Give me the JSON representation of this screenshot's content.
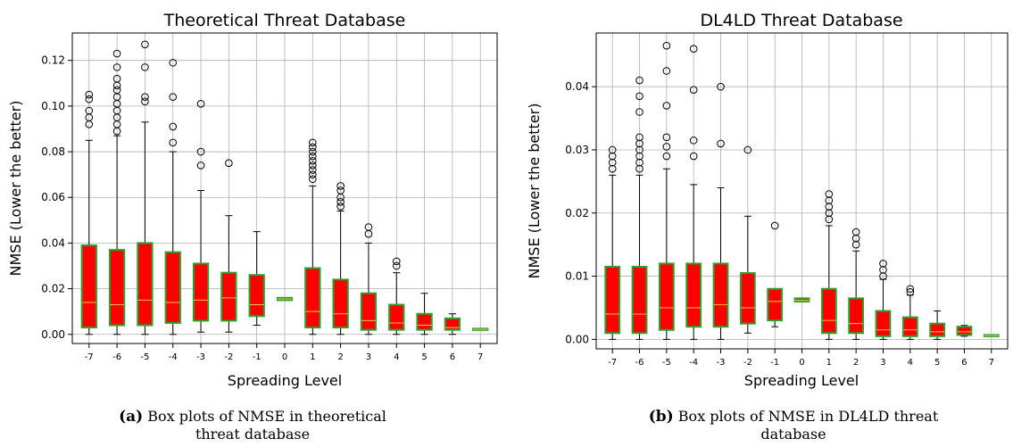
{
  "chart_data": [
    {
      "type": "box",
      "title": "Theoretical Threat Database",
      "xlabel": "Spreading Level",
      "ylabel": "NMSE (Lower the better)",
      "ylim": [
        -0.004,
        0.132
      ],
      "yticks": [
        0.0,
        0.02,
        0.04,
        0.06,
        0.08,
        0.1,
        0.12
      ],
      "ytick_labels": [
        "0.00",
        "0.02",
        "0.04",
        "0.06",
        "0.08",
        "0.10",
        "0.12"
      ],
      "grid": true,
      "box_fill": "#ff0000",
      "box_edge": "#2ca02c",
      "median_color": "#ffbf40",
      "boxes": [
        {
          "label": "-7",
          "whislo": 0.0,
          "q1": 0.003,
          "med": 0.014,
          "q3": 0.039,
          "whishi": 0.085,
          "fliers": [
            0.092,
            0.095,
            0.098,
            0.103,
            0.105
          ]
        },
        {
          "label": "-6",
          "whislo": 0.0,
          "q1": 0.004,
          "med": 0.013,
          "q3": 0.037,
          "whishi": 0.087,
          "fliers": [
            0.089,
            0.092,
            0.095,
            0.098,
            0.101,
            0.104,
            0.107,
            0.109,
            0.112,
            0.117,
            0.123
          ]
        },
        {
          "label": "-5",
          "whislo": 0.0,
          "q1": 0.004,
          "med": 0.015,
          "q3": 0.04,
          "whishi": 0.093,
          "fliers": [
            0.102,
            0.104,
            0.117,
            0.127
          ]
        },
        {
          "label": "-4",
          "whislo": 0.0,
          "q1": 0.005,
          "med": 0.014,
          "q3": 0.036,
          "whishi": 0.08,
          "fliers": [
            0.084,
            0.091,
            0.104,
            0.119
          ]
        },
        {
          "label": "-3",
          "whislo": 0.001,
          "q1": 0.006,
          "med": 0.015,
          "q3": 0.031,
          "whishi": 0.063,
          "fliers": [
            0.074,
            0.08,
            0.101
          ]
        },
        {
          "label": "-2",
          "whislo": 0.001,
          "q1": 0.006,
          "med": 0.016,
          "q3": 0.027,
          "whishi": 0.052,
          "fliers": [
            0.075
          ]
        },
        {
          "label": "-1",
          "whislo": 0.004,
          "q1": 0.008,
          "med": 0.013,
          "q3": 0.026,
          "whishi": 0.045,
          "fliers": []
        },
        {
          "label": "0",
          "whislo": 0.015,
          "q1": 0.015,
          "med": 0.0155,
          "q3": 0.016,
          "whishi": 0.016,
          "fliers": []
        },
        {
          "label": "1",
          "whislo": 0.0,
          "q1": 0.003,
          "med": 0.01,
          "q3": 0.029,
          "whishi": 0.065,
          "fliers": [
            0.068,
            0.07,
            0.072,
            0.074,
            0.076,
            0.078,
            0.08,
            0.082,
            0.084
          ]
        },
        {
          "label": "2",
          "whislo": 0.0,
          "q1": 0.003,
          "med": 0.009,
          "q3": 0.024,
          "whishi": 0.054,
          "fliers": [
            0.056,
            0.058,
            0.06,
            0.063,
            0.065
          ]
        },
        {
          "label": "3",
          "whislo": 0.0,
          "q1": 0.002,
          "med": 0.006,
          "q3": 0.018,
          "whishi": 0.04,
          "fliers": [
            0.044,
            0.047
          ]
        },
        {
          "label": "4",
          "whislo": 0.0,
          "q1": 0.002,
          "med": 0.005,
          "q3": 0.013,
          "whishi": 0.027,
          "fliers": [
            0.03,
            0.032
          ]
        },
        {
          "label": "5",
          "whislo": 0.0,
          "q1": 0.002,
          "med": 0.004,
          "q3": 0.009,
          "whishi": 0.018,
          "fliers": []
        },
        {
          "label": "6",
          "whislo": 0.0,
          "q1": 0.002,
          "med": 0.003,
          "q3": 0.007,
          "whishi": 0.009,
          "fliers": []
        },
        {
          "label": "7",
          "whislo": 0.002,
          "q1": 0.002,
          "med": 0.0022,
          "q3": 0.0025,
          "whishi": 0.0025,
          "fliers": []
        }
      ]
    },
    {
      "type": "box",
      "title": "DL4LD Threat Database",
      "xlabel": "Spreading Level",
      "ylabel": "NMSE (Lower the better)",
      "ylim": [
        -0.0015,
        0.0485
      ],
      "yticks": [
        0.0,
        0.01,
        0.02,
        0.03,
        0.04
      ],
      "ytick_labels": [
        "0.00",
        "0.01",
        "0.02",
        "0.03",
        "0.04"
      ],
      "grid": true,
      "box_fill": "#ff0000",
      "box_edge": "#2ca02c",
      "median_color": "#ffbf40",
      "boxes": [
        {
          "label": "-7",
          "whislo": 0.0,
          "q1": 0.001,
          "med": 0.004,
          "q3": 0.0115,
          "whishi": 0.026,
          "fliers": [
            0.027,
            0.028,
            0.029,
            0.03
          ]
        },
        {
          "label": "-6",
          "whislo": 0.0,
          "q1": 0.001,
          "med": 0.004,
          "q3": 0.0115,
          "whishi": 0.026,
          "fliers": [
            0.027,
            0.028,
            0.029,
            0.03,
            0.031,
            0.032,
            0.036,
            0.0385,
            0.041
          ]
        },
        {
          "label": "-5",
          "whislo": 0.0,
          "q1": 0.0015,
          "med": 0.005,
          "q3": 0.012,
          "whishi": 0.027,
          "fliers": [
            0.029,
            0.0305,
            0.032,
            0.037,
            0.0425,
            0.0465
          ]
        },
        {
          "label": "-4",
          "whislo": 0.0,
          "q1": 0.002,
          "med": 0.005,
          "q3": 0.012,
          "whishi": 0.0245,
          "fliers": [
            0.029,
            0.0315,
            0.0395,
            0.046
          ]
        },
        {
          "label": "-3",
          "whislo": 0.0,
          "q1": 0.002,
          "med": 0.0055,
          "q3": 0.012,
          "whishi": 0.024,
          "fliers": [
            0.031,
            0.04
          ]
        },
        {
          "label": "-2",
          "whislo": 0.001,
          "q1": 0.0025,
          "med": 0.005,
          "q3": 0.0105,
          "whishi": 0.0195,
          "fliers": [
            0.03
          ]
        },
        {
          "label": "-1",
          "whislo": 0.002,
          "q1": 0.003,
          "med": 0.006,
          "q3": 0.008,
          "whishi": 0.008,
          "fliers": [
            0.018
          ]
        },
        {
          "label": "0",
          "whislo": 0.006,
          "q1": 0.006,
          "med": 0.0062,
          "q3": 0.0065,
          "whishi": 0.0065,
          "fliers": []
        },
        {
          "label": "1",
          "whislo": 0.0,
          "q1": 0.001,
          "med": 0.003,
          "q3": 0.008,
          "whishi": 0.018,
          "fliers": [
            0.019,
            0.02,
            0.021,
            0.022,
            0.023
          ]
        },
        {
          "label": "2",
          "whislo": 0.0,
          "q1": 0.001,
          "med": 0.0025,
          "q3": 0.0065,
          "whishi": 0.014,
          "fliers": [
            0.015,
            0.016,
            0.017
          ]
        },
        {
          "label": "3",
          "whislo": 0.0,
          "q1": 0.0005,
          "med": 0.0015,
          "q3": 0.0045,
          "whishi": 0.0095,
          "fliers": [
            0.01,
            0.011,
            0.012
          ]
        },
        {
          "label": "4",
          "whislo": 0.0,
          "q1": 0.0005,
          "med": 0.0015,
          "q3": 0.0035,
          "whishi": 0.007,
          "fliers": [
            0.0075,
            0.008
          ]
        },
        {
          "label": "5",
          "whislo": 0.0,
          "q1": 0.0005,
          "med": 0.0012,
          "q3": 0.0025,
          "whishi": 0.0045,
          "fliers": []
        },
        {
          "label": "6",
          "whislo": 0.0005,
          "q1": 0.0007,
          "med": 0.0012,
          "q3": 0.002,
          "whishi": 0.0022,
          "fliers": []
        },
        {
          "label": "7",
          "whislo": 0.0005,
          "q1": 0.0005,
          "med": 0.0006,
          "q3": 0.0007,
          "whishi": 0.0007,
          "fliers": []
        }
      ]
    }
  ],
  "captions": [
    {
      "tag": "(a)",
      "text": "Box plots of NMSE in theoretical threat database"
    },
    {
      "tag": "(b)",
      "text": "Box plots of NMSE in DL4LD threat database"
    }
  ]
}
